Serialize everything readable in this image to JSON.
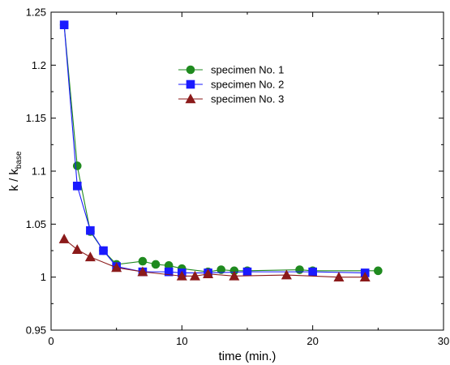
{
  "chart_data": {
    "type": "line",
    "title": "",
    "xlabel": "time (min.)",
    "ylabel": {
      "main": "k / k",
      "subscript": "base"
    },
    "xlim": [
      0,
      30
    ],
    "ylim": [
      0.95,
      1.25
    ],
    "xticks": [
      0,
      10,
      20,
      30
    ],
    "xtick_labels": [
      "0",
      "10",
      "20",
      "30"
    ],
    "yticks": [
      0.95,
      1,
      1.05,
      1.1,
      1.15,
      1.2,
      1.25
    ],
    "ytick_labels": [
      "0.95",
      "1",
      "1.05",
      "1.1",
      "1.15",
      "1.2",
      "1.25"
    ],
    "grid": false,
    "legend_position": "upper-center",
    "series": [
      {
        "name": "specimen No. 1",
        "color": "#1f8a1f",
        "marker": "circle",
        "x": [
          1,
          2,
          3,
          4,
          5,
          7,
          8,
          9,
          10,
          12,
          13,
          14,
          15,
          19,
          20,
          25
        ],
        "y": [
          1.238,
          1.105,
          1.043,
          1.025,
          1.012,
          1.015,
          1.012,
          1.011,
          1.008,
          1.005,
          1.007,
          1.006,
          1.006,
          1.007,
          1.006,
          1.006
        ]
      },
      {
        "name": "specimen No. 2",
        "color": "#1a1aff",
        "marker": "square",
        "x": [
          1,
          2,
          3,
          4,
          5,
          7,
          9,
          10,
          12,
          15,
          20,
          24
        ],
        "y": [
          1.238,
          1.086,
          1.044,
          1.025,
          1.01,
          1.005,
          1.005,
          1.004,
          1.004,
          1.005,
          1.005,
          1.004
        ]
      },
      {
        "name": "specimen No. 3",
        "color": "#8b1a1a",
        "marker": "triangle",
        "x": [
          1,
          2,
          3,
          5,
          7,
          10,
          11,
          12,
          14,
          18,
          22,
          24
        ],
        "y": [
          1.036,
          1.026,
          1.019,
          1.009,
          1.005,
          1.001,
          1.001,
          1.003,
          1.001,
          1.002,
          1.0,
          1.0
        ]
      }
    ]
  }
}
